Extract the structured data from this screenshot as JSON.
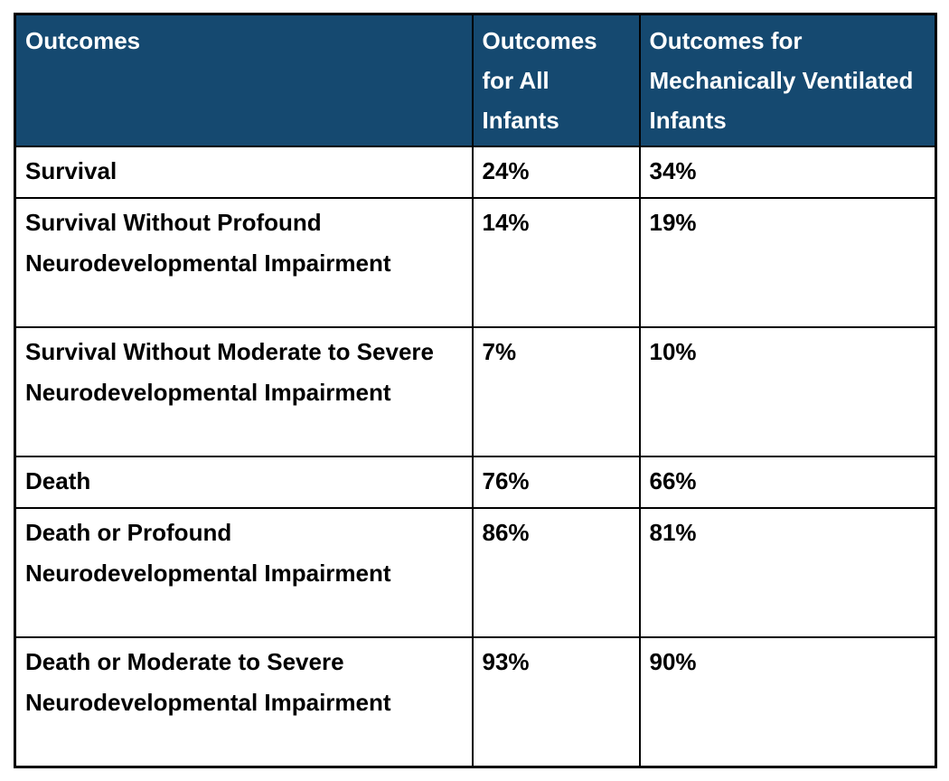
{
  "colors": {
    "header_bg": "#154970",
    "header_text": "#ffffff",
    "body_text": "#000000",
    "border": "#000000"
  },
  "table": {
    "columns": [
      "Outcomes",
      "Outcomes for All Infants",
      "Outcomes for Mechanically Ventilated Infants"
    ],
    "rows": [
      [
        "Survival",
        "24%",
        "34%"
      ],
      [
        "Survival Without Profound Neurodevelopmental Impairment",
        "14%",
        "19%"
      ],
      [
        "Survival Without Moderate to Severe Neurodevelopmental Impairment",
        "7%",
        "10%"
      ],
      [
        "Death",
        "76%",
        "66%"
      ],
      [
        "Death or Profound Neurodevelopmental Impairment",
        "86%",
        "81%"
      ],
      [
        "Death or Moderate to Severe Neurodevelopmental Impairment",
        "93%",
        "90%"
      ]
    ]
  },
  "chart_data": {
    "type": "table",
    "columns": [
      "Outcomes",
      "Outcomes for All Infants",
      "Outcomes for Mechanically Ventilated Infants"
    ],
    "rows": [
      [
        "Survival",
        "24%",
        "34%"
      ],
      [
        "Survival Without Profound Neurodevelopmental Impairment",
        "14%",
        "19%"
      ],
      [
        "Survival Without Moderate to Severe Neurodevelopmental Impairment",
        "7%",
        "10%"
      ],
      [
        "Death",
        "76%",
        "66%"
      ],
      [
        "Death or Profound Neurodevelopmental Impairment",
        "86%",
        "81%"
      ],
      [
        "Death or Moderate to Severe Neurodevelopmental Impairment",
        "93%",
        "90%"
      ]
    ],
    "series": [
      {
        "name": "Outcomes for All Infants",
        "values": [
          24,
          14,
          7,
          76,
          86,
          93
        ]
      },
      {
        "name": "Outcomes for Mechanically Ventilated Infants",
        "values": [
          34,
          19,
          10,
          66,
          81,
          90
        ]
      }
    ],
    "categories": [
      "Survival",
      "Survival Without Profound Neurodevelopmental Impairment",
      "Survival Without Moderate to Severe Neurodevelopmental Impairment",
      "Death",
      "Death or Profound Neurodevelopmental Impairment",
      "Death or Moderate to Severe Neurodevelopmental Impairment"
    ],
    "title": "",
    "unit": "percent"
  }
}
